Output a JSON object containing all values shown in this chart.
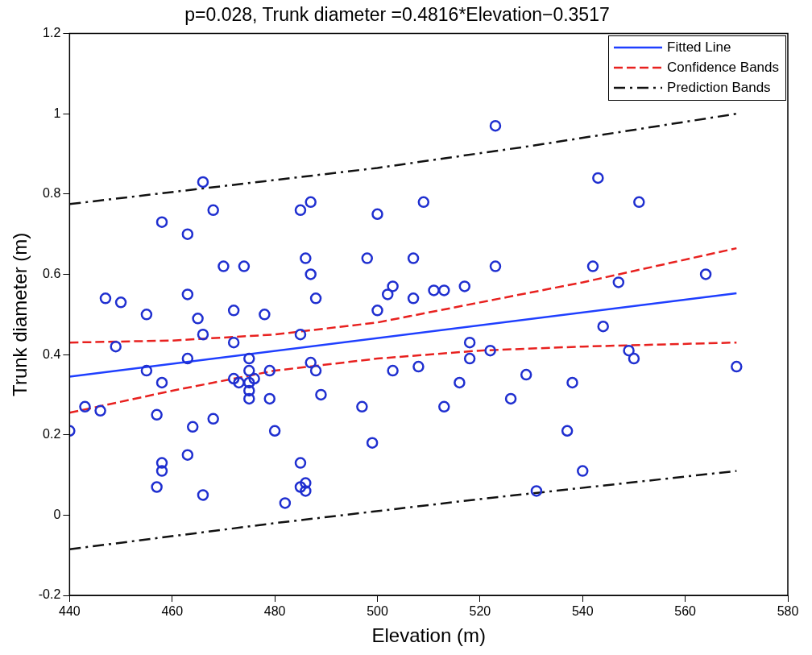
{
  "chart_data": {
    "type": "scatter",
    "title": "p=0.028, Trunk diameter =0.4816*Elevation−0.3517",
    "xlabel": "Elevation (m)",
    "ylabel": "Trunk diameter (m)",
    "xlim": [
      440,
      580
    ],
    "xticks": [
      440,
      460,
      480,
      500,
      520,
      540,
      560,
      580
    ],
    "ylim": [
      -0.2,
      1.2
    ],
    "yticks": [
      -0.2,
      0,
      0.2,
      0.4,
      0.6,
      0.8,
      1,
      1.2
    ],
    "grid": false,
    "legend": "top right",
    "series": [
      {
        "marker": "circle",
        "color": "#1f2fd0",
        "x": [
          440,
          443,
          446,
          447,
          449,
          450,
          455,
          455,
          457,
          457,
          458,
          458,
          458,
          458,
          463,
          463,
          463,
          463,
          464,
          465,
          466,
          466,
          466,
          468,
          468,
          470,
          472,
          472,
          472,
          473,
          474,
          475,
          475,
          475,
          475,
          475,
          476,
          478,
          479,
          479,
          480,
          482,
          485,
          485,
          485,
          485,
          486,
          486,
          486,
          487,
          487,
          487,
          488,
          488,
          489,
          497,
          498,
          499,
          500,
          500,
          502,
          503,
          503,
          507,
          507,
          508,
          509,
          511,
          513,
          513,
          516,
          517,
          518,
          518,
          522,
          523,
          523,
          526,
          529,
          531,
          537,
          538,
          540,
          542,
          543,
          544,
          547,
          549,
          550,
          551,
          564,
          570
        ],
        "values": [
          0.21,
          0.27,
          0.26,
          0.54,
          0.42,
          0.53,
          0.5,
          0.36,
          0.25,
          0.07,
          0.73,
          0.33,
          0.13,
          0.11,
          0.7,
          0.55,
          0.39,
          0.15,
          0.22,
          0.49,
          0.45,
          0.83,
          0.05,
          0.76,
          0.24,
          0.62,
          0.51,
          0.43,
          0.34,
          0.33,
          0.62,
          0.39,
          0.36,
          0.33,
          0.31,
          0.29,
          0.34,
          0.5,
          0.36,
          0.29,
          0.21,
          0.03,
          0.76,
          0.45,
          0.13,
          0.07,
          0.64,
          0.08,
          0.06,
          0.78,
          0.6,
          0.38,
          0.54,
          0.36,
          0.3,
          0.27,
          0.64,
          0.18,
          0.75,
          0.51,
          0.55,
          0.57,
          0.36,
          0.64,
          0.54,
          0.37,
          0.78,
          0.56,
          0.56,
          0.27,
          0.33,
          0.57,
          0.43,
          0.39,
          0.41,
          0.97,
          0.62,
          0.29,
          0.35,
          0.06,
          0.21,
          0.33,
          0.11,
          0.62,
          0.84,
          0.47,
          0.58,
          0.41,
          0.39,
          0.78,
          0.6,
          0.37
        ]
      },
      {
        "type": "line",
        "name": "Fitted Line",
        "color": "#1f3fff",
        "line_style": "solid",
        "x": [
          440,
          570
        ],
        "values": [
          0.345,
          0.553
        ]
      },
      {
        "type": "line",
        "name": "Confidence Bands",
        "color": "#e8211f",
        "line_style": "dashed",
        "x": [
          440,
          460,
          480,
          500,
          520,
          540,
          570
        ],
        "values": [
          0.43,
          0.435,
          0.45,
          0.48,
          0.53,
          0.58,
          0.665
        ]
      },
      {
        "type": "line",
        "color": "#e8211f",
        "line_style": "dashed",
        "x": [
          440,
          460,
          480,
          500,
          520,
          540,
          570
        ],
        "values": [
          0.255,
          0.31,
          0.36,
          0.39,
          0.41,
          0.42,
          0.43
        ]
      },
      {
        "type": "line",
        "name": "Prediction Bands",
        "color": "#111111",
        "line_style": "dashdot",
        "x": [
          440,
          470,
          500,
          530,
          570
        ],
        "values": [
          0.775,
          0.82,
          0.865,
          0.92,
          1.0
        ]
      },
      {
        "type": "line",
        "color": "#111111",
        "line_style": "dashdot",
        "x": [
          440,
          480,
          520,
          570
        ],
        "values": [
          -0.085,
          -0.02,
          0.04,
          0.11
        ]
      }
    ]
  }
}
